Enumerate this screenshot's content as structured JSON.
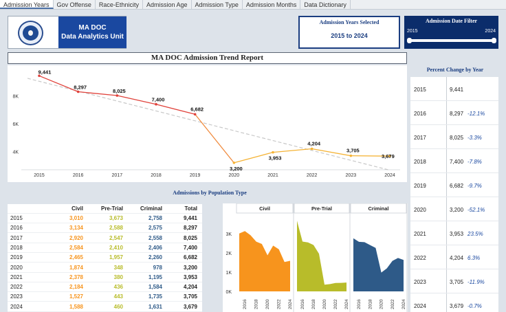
{
  "tabs": [
    "Admission Years",
    "Gov Offense",
    "Race-Ethnicity",
    "Admission Age",
    "Admission Type",
    "Admission Months",
    "Data Dictionary"
  ],
  "header": {
    "unit_line1": "MA DOC",
    "unit_line2": "Data Analytics Unit"
  },
  "years_selected": {
    "label": "Admission Years Selected",
    "value": "2015 to 2024"
  },
  "date_filter": {
    "label": "Admission Date Filter",
    "start": "2015",
    "end": "2024",
    "range": [
      2015,
      2024
    ]
  },
  "report_title": "MA DOC Admission Trend Report",
  "percent_change": {
    "title": "Percent Change by Year",
    "rows": [
      {
        "year": "2015",
        "total": "9,441",
        "pct": ""
      },
      {
        "year": "2016",
        "total": "8,297",
        "pct": "-12.1%"
      },
      {
        "year": "2017",
        "total": "8,025",
        "pct": "-3.3%"
      },
      {
        "year": "2018",
        "total": "7,400",
        "pct": "-7.8%"
      },
      {
        "year": "2019",
        "total": "6,682",
        "pct": "-9.7%"
      },
      {
        "year": "2020",
        "total": "3,200",
        "pct": "-52.1%"
      },
      {
        "year": "2021",
        "total": "3,953",
        "pct": "23.5%"
      },
      {
        "year": "2022",
        "total": "4,204",
        "pct": "6.3%"
      },
      {
        "year": "2023",
        "total": "3,705",
        "pct": "-11.9%"
      },
      {
        "year": "2024",
        "total": "3,679",
        "pct": "-0.7%"
      }
    ]
  },
  "population": {
    "title": "Admissions by Population Type",
    "headers": {
      "civil": "Civil",
      "pretrial": "Pre-Trial",
      "criminal": "Criminal",
      "total": "Total"
    },
    "rows": [
      {
        "year": "2015",
        "civil": "3,010",
        "pretrial": "3,673",
        "criminal": "2,758",
        "total": "9,441"
      },
      {
        "year": "2016",
        "civil": "3,134",
        "pretrial": "2,588",
        "criminal": "2,575",
        "total": "8,297"
      },
      {
        "year": "2017",
        "civil": "2,920",
        "pretrial": "2,547",
        "criminal": "2,558",
        "total": "8,025"
      },
      {
        "year": "2018",
        "civil": "2,584",
        "pretrial": "2,410",
        "criminal": "2,406",
        "total": "7,400"
      },
      {
        "year": "2019",
        "civil": "2,465",
        "pretrial": "1,957",
        "criminal": "2,260",
        "total": "6,682"
      },
      {
        "year": "2020",
        "civil": "1,874",
        "pretrial": "348",
        "criminal": "978",
        "total": "3,200"
      },
      {
        "year": "2021",
        "civil": "2,378",
        "pretrial": "380",
        "criminal": "1,195",
        "total": "3,953"
      },
      {
        "year": "2022",
        "civil": "2,184",
        "pretrial": "436",
        "criminal": "1,584",
        "total": "4,204"
      },
      {
        "year": "2023",
        "civil": "1,527",
        "pretrial": "443",
        "criminal": "1,735",
        "total": "3,705"
      },
      {
        "year": "2024",
        "civil": "1,588",
        "pretrial": "460",
        "criminal": "1,631",
        "total": "3,679"
      }
    ]
  },
  "colors": {
    "civil": "#f7941d",
    "pretrial": "#b8bc2a",
    "criminal": "#2e5a88",
    "line_early": "#e0413a",
    "line_late": "#f5b335",
    "trend": "#c8c8c8",
    "brand": "#1a48a0"
  },
  "chart_data": [
    {
      "type": "line",
      "x": [
        2015,
        2016,
        2017,
        2018,
        2019,
        2020,
        2021,
        2022,
        2023,
        2024
      ],
      "series": [
        {
          "values": [
            9441,
            8297,
            8025,
            7400,
            6682,
            3200,
            3953,
            4204,
            3705,
            3679
          ]
        }
      ],
      "value_labels": [
        "9,441",
        "8,297",
        "8,025",
        "7,400",
        "6,682",
        "3,200",
        "3,953",
        "4,204",
        "3,705",
        "3,679"
      ],
      "y_ticks": [
        "4K",
        "6K",
        "8K"
      ],
      "x_ticks": [
        "2015",
        "2016",
        "2017",
        "2018",
        "2019",
        "2020",
        "2021",
        "2022",
        "2023",
        "2024"
      ],
      "ylim": [
        2800,
        9900
      ],
      "trend_line": true,
      "grid": false
    },
    {
      "type": "area",
      "x": [
        2015,
        2016,
        2017,
        2018,
        2019,
        2020,
        2021,
        2022,
        2023,
        2024
      ],
      "categories": [
        "Civil",
        "Pre-Trial",
        "Criminal"
      ],
      "series": [
        {
          "name": "Civil",
          "values": [
            3010,
            3134,
            2920,
            2584,
            2465,
            1874,
            2378,
            2184,
            1527,
            1588
          ]
        },
        {
          "name": "Pre-Trial",
          "values": [
            3673,
            2588,
            2547,
            2410,
            1957,
            348,
            380,
            436,
            443,
            460
          ]
        },
        {
          "name": "Criminal",
          "values": [
            2758,
            2575,
            2558,
            2406,
            2260,
            978,
            1195,
            1584,
            1735,
            1631
          ]
        }
      ],
      "y_ticks": [
        "0K",
        "1K",
        "2K",
        "3K"
      ],
      "x_ticks": [
        "2016",
        "2018",
        "2020",
        "2022",
        "2024"
      ],
      "ylim": [
        0,
        4000
      ]
    }
  ]
}
